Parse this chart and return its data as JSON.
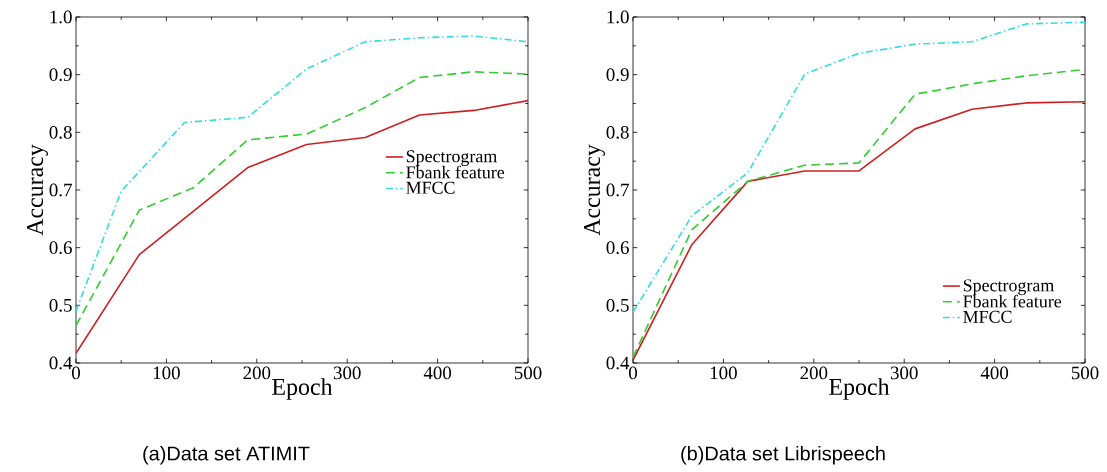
{
  "chart_data": [
    {
      "type": "line",
      "xlabel": "Epoch",
      "ylabel": "Accuracy",
      "annotations": [
        "(a)Data set ATIMIT"
      ],
      "xlim": [
        0,
        500
      ],
      "ylim": [
        0.4,
        1.0
      ],
      "xticks": [
        0,
        100,
        200,
        300,
        400,
        500
      ],
      "yticks": [
        0.4,
        0.5,
        0.6,
        0.7,
        0.8,
        0.9,
        {
          "value": 1.0,
          "label": "1.0"
        }
      ],
      "legend": "right",
      "grid": false,
      "marker": "none",
      "series": [
        {
          "name": "Spectrogram",
          "color": "#cc2020",
          "line_style": "solid",
          "x": [
            0,
            70,
            190,
            255,
            320,
            380,
            440,
            500
          ],
          "values": [
            0.417,
            0.588,
            0.739,
            0.779,
            0.791,
            0.83,
            0.838,
            0.855
          ]
        },
        {
          "name": "Fbank feature",
          "color": "#33cc33",
          "line_style": "dashed",
          "x": [
            0,
            70,
            130,
            190,
            255,
            320,
            380,
            440,
            500
          ],
          "values": [
            0.465,
            0.665,
            0.704,
            0.787,
            0.797,
            0.843,
            0.895,
            0.905,
            0.901
          ]
        },
        {
          "name": "MFCC",
          "color": "#33dddd",
          "line_style": "dashdot",
          "x": [
            0,
            50,
            120,
            190,
            255,
            320,
            380,
            440,
            500
          ],
          "values": [
            0.49,
            0.698,
            0.817,
            0.826,
            0.91,
            0.957,
            0.964,
            0.967,
            0.957
          ]
        }
      ]
    },
    {
      "type": "line",
      "xlabel": "Epoch",
      "ylabel": "Accuracy",
      "annotations": [
        "(b)Data set Librispeech"
      ],
      "xlim": [
        0,
        500
      ],
      "ylim": [
        0.4,
        1.0
      ],
      "xticks": [
        0,
        100,
        200,
        300,
        400,
        500
      ],
      "yticks": [
        0.4,
        0.5,
        0.6,
        0.7,
        0.8,
        0.9,
        {
          "value": 1.0,
          "label": "1.0"
        }
      ],
      "legend": "bottom right",
      "grid": false,
      "marker": "none",
      "series": [
        {
          "name": "Spectrogram",
          "color": "#cc2020",
          "line_style": "solid",
          "x": [
            0,
            65,
            127,
            190,
            250,
            312,
            375,
            435,
            500
          ],
          "values": [
            0.405,
            0.605,
            0.715,
            0.733,
            0.733,
            0.806,
            0.84,
            0.851,
            0.853
          ]
        },
        {
          "name": "Fbank feature",
          "color": "#33cc33",
          "line_style": "dashed",
          "x": [
            0,
            65,
            127,
            190,
            250,
            312,
            375,
            435,
            500
          ],
          "values": [
            0.41,
            0.631,
            0.715,
            0.743,
            0.747,
            0.866,
            0.884,
            0.898,
            0.909
          ]
        },
        {
          "name": "MFCC",
          "color": "#33dddd",
          "line_style": "dashdot",
          "x": [
            0,
            65,
            127,
            190,
            250,
            312,
            375,
            435,
            500
          ],
          "values": [
            0.488,
            0.655,
            0.73,
            0.901,
            0.937,
            0.953,
            0.957,
            0.988,
            0.991
          ]
        }
      ]
    }
  ]
}
